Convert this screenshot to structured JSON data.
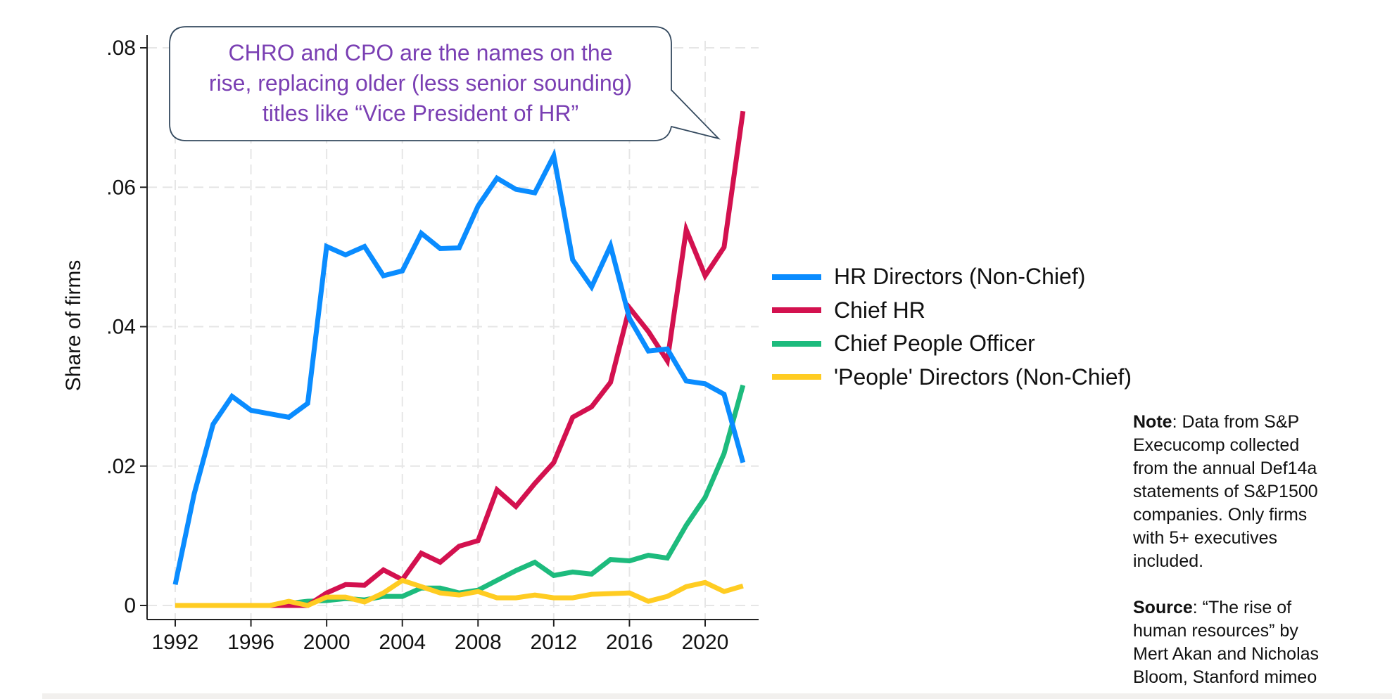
{
  "chart_data": {
    "type": "line",
    "title": "",
    "xlabel": "",
    "ylabel": "Share of firms",
    "xlim": [
      1992,
      2022
    ],
    "ylim": [
      0,
      0.08
    ],
    "x_ticks": [
      1992,
      1996,
      2000,
      2004,
      2008,
      2012,
      2016,
      2020
    ],
    "x_tick_labels": [
      "1992",
      "1996",
      "2000",
      "2004",
      "2008",
      "2012",
      "2016",
      "2020"
    ],
    "y_ticks": [
      0,
      0.02,
      0.04,
      0.06,
      0.08
    ],
    "y_tick_labels": [
      "0",
      ".02",
      ".04",
      ".06",
      ".08"
    ],
    "grid": true,
    "legend_placement": "right",
    "x": [
      1992,
      1993,
      1994,
      1995,
      1996,
      1997,
      1998,
      1999,
      2000,
      2001,
      2002,
      2003,
      2004,
      2005,
      2006,
      2007,
      2008,
      2009,
      2010,
      2011,
      2012,
      2013,
      2014,
      2015,
      2016,
      2017,
      2018,
      2019,
      2020,
      2021,
      2022
    ],
    "series": [
      {
        "name": "HR Directors (Non-Chief)",
        "color": "#0a8cff",
        "values": [
          0.003,
          0.016,
          0.026,
          0.03,
          0.028,
          0.0275,
          0.027,
          0.029,
          0.0515,
          0.0503,
          0.0515,
          0.0473,
          0.048,
          0.0534,
          0.0512,
          0.0513,
          0.0573,
          0.0613,
          0.0597,
          0.0592,
          0.0645,
          0.0496,
          0.0457,
          0.0516,
          0.0412,
          0.0365,
          0.0368,
          0.0322,
          0.0318,
          0.0303,
          0.0205
        ]
      },
      {
        "name": "Chief HR",
        "color": "#d3114f",
        "values": [
          0,
          0,
          0,
          0,
          0,
          0,
          0,
          0,
          0.0018,
          0.003,
          0.0029,
          0.0051,
          0.0037,
          0.0075,
          0.0062,
          0.0085,
          0.0093,
          0.0166,
          0.0142,
          0.0175,
          0.0205,
          0.027,
          0.0285,
          0.032,
          0.0427,
          0.0393,
          0.0351,
          0.0539,
          0.0473,
          0.0514,
          0.0709
        ]
      },
      {
        "name": "Chief People Officer",
        "color": "#1dbb7d",
        "values": [
          0,
          0,
          0,
          0,
          0,
          0,
          0.0003,
          0.0006,
          0.0007,
          0.001,
          0.0008,
          0.0013,
          0.0013,
          0.0025,
          0.0025,
          0.0018,
          0.0022,
          0.0036,
          0.005,
          0.0062,
          0.0043,
          0.0048,
          0.0045,
          0.0066,
          0.0064,
          0.0072,
          0.0068,
          0.0115,
          0.0155,
          0.0218,
          0.0316
        ]
      },
      {
        "name": "'People' Directors (Non-Chief)",
        "color": "#ffcc22",
        "values": [
          0,
          0,
          0,
          0,
          0,
          0,
          0.0006,
          0,
          0.0012,
          0.0012,
          0.0005,
          0.0018,
          0.0036,
          0.0027,
          0.0018,
          0.0015,
          0.002,
          0.0011,
          0.0011,
          0.0015,
          0.0011,
          0.0011,
          0.0016,
          0.0017,
          0.0018,
          0.0006,
          0.0013,
          0.0027,
          0.0033,
          0.002,
          0.0028
        ]
      }
    ],
    "annotation": {
      "lines": [
        "CHRO and CPO are the names on the",
        "rise, replacing older (less senior sounding)",
        "titles like “Vice President of HR”"
      ],
      "color": "#7a3fb3"
    }
  },
  "note": {
    "label": "Note",
    "lines": [
      ": Data from S&P",
      "Execucomp collected",
      "from the annual Def14a",
      "statements of S&P1500",
      "companies. Only firms",
      "with 5+ executives",
      "included."
    ]
  },
  "source": {
    "label": "Source",
    "lines": [
      ": “The rise of",
      "human resources” by",
      "Mert Akan and Nicholas",
      "Bloom, Stanford mimeo"
    ]
  }
}
